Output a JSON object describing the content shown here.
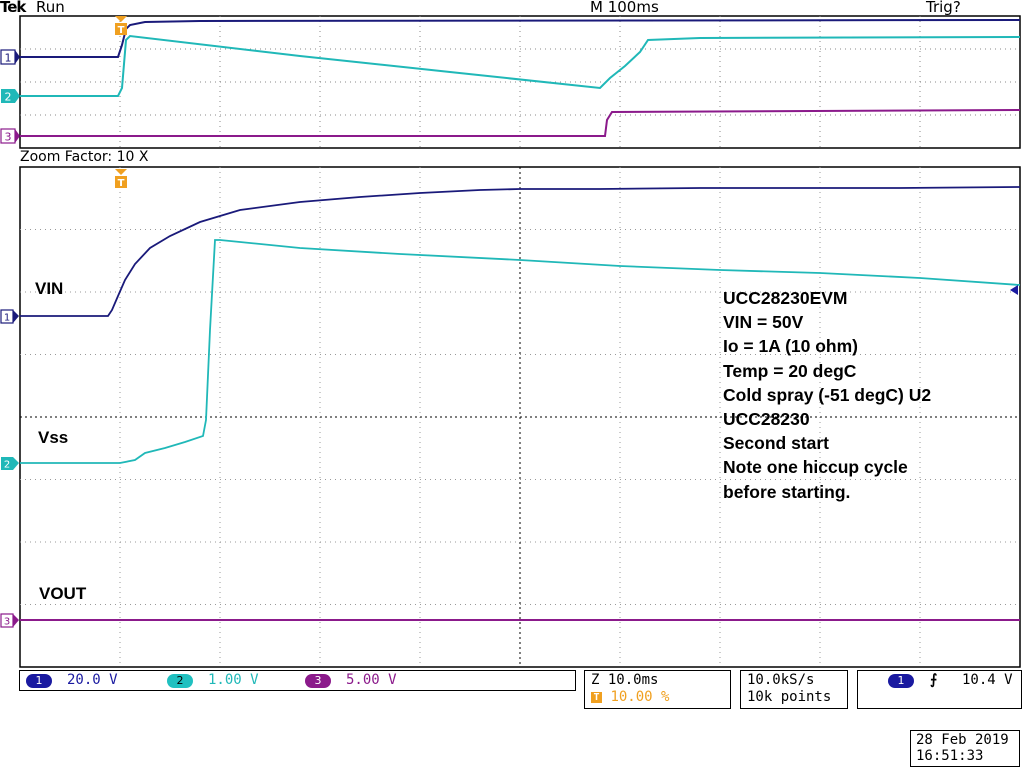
{
  "header": {
    "brand": "Tek",
    "acq_state": "Run",
    "timebase": "M 100ms",
    "trigger_state": "Trig?"
  },
  "zoom": {
    "label": "Zoom Factor: 10 X"
  },
  "channel_labels": {
    "vin": "VIN",
    "vss": "Vss",
    "vout": "VOUT"
  },
  "channel_markers": [
    "1",
    "2",
    "3"
  ],
  "notes": [
    "UCC28230EVM",
    "VIN = 50V",
    "Io = 1A (10 ohm)",
    "Temp = 20 degC",
    "Cold spray (-51 degC) U2",
    "UCC28230",
    "Second start",
    "Note one hiccup cycle",
    "before starting."
  ],
  "status": {
    "channels": [
      {
        "id": "1",
        "scale": "20.0 V",
        "color": "#1a1aa0"
      },
      {
        "id": "2",
        "scale": "1.00 V",
        "color": "#20c0c0"
      },
      {
        "id": "3",
        "scale": "5.00 V",
        "color": "#8b1a8b"
      }
    ],
    "zoom_time": "Z 10.0ms",
    "trigger_pos": "10.00 %",
    "sample_rate": "10.0kS/s",
    "record_length": "10k points",
    "trigger_channel": "1",
    "trigger_level": "10.4 V",
    "date": "28 Feb 2019",
    "time": "16:51:33"
  },
  "colors": {
    "ch1": "#1a1a7a",
    "ch2": "#20b8b8",
    "ch3": "#8b1a8b",
    "trigger": "#f0a020"
  }
}
